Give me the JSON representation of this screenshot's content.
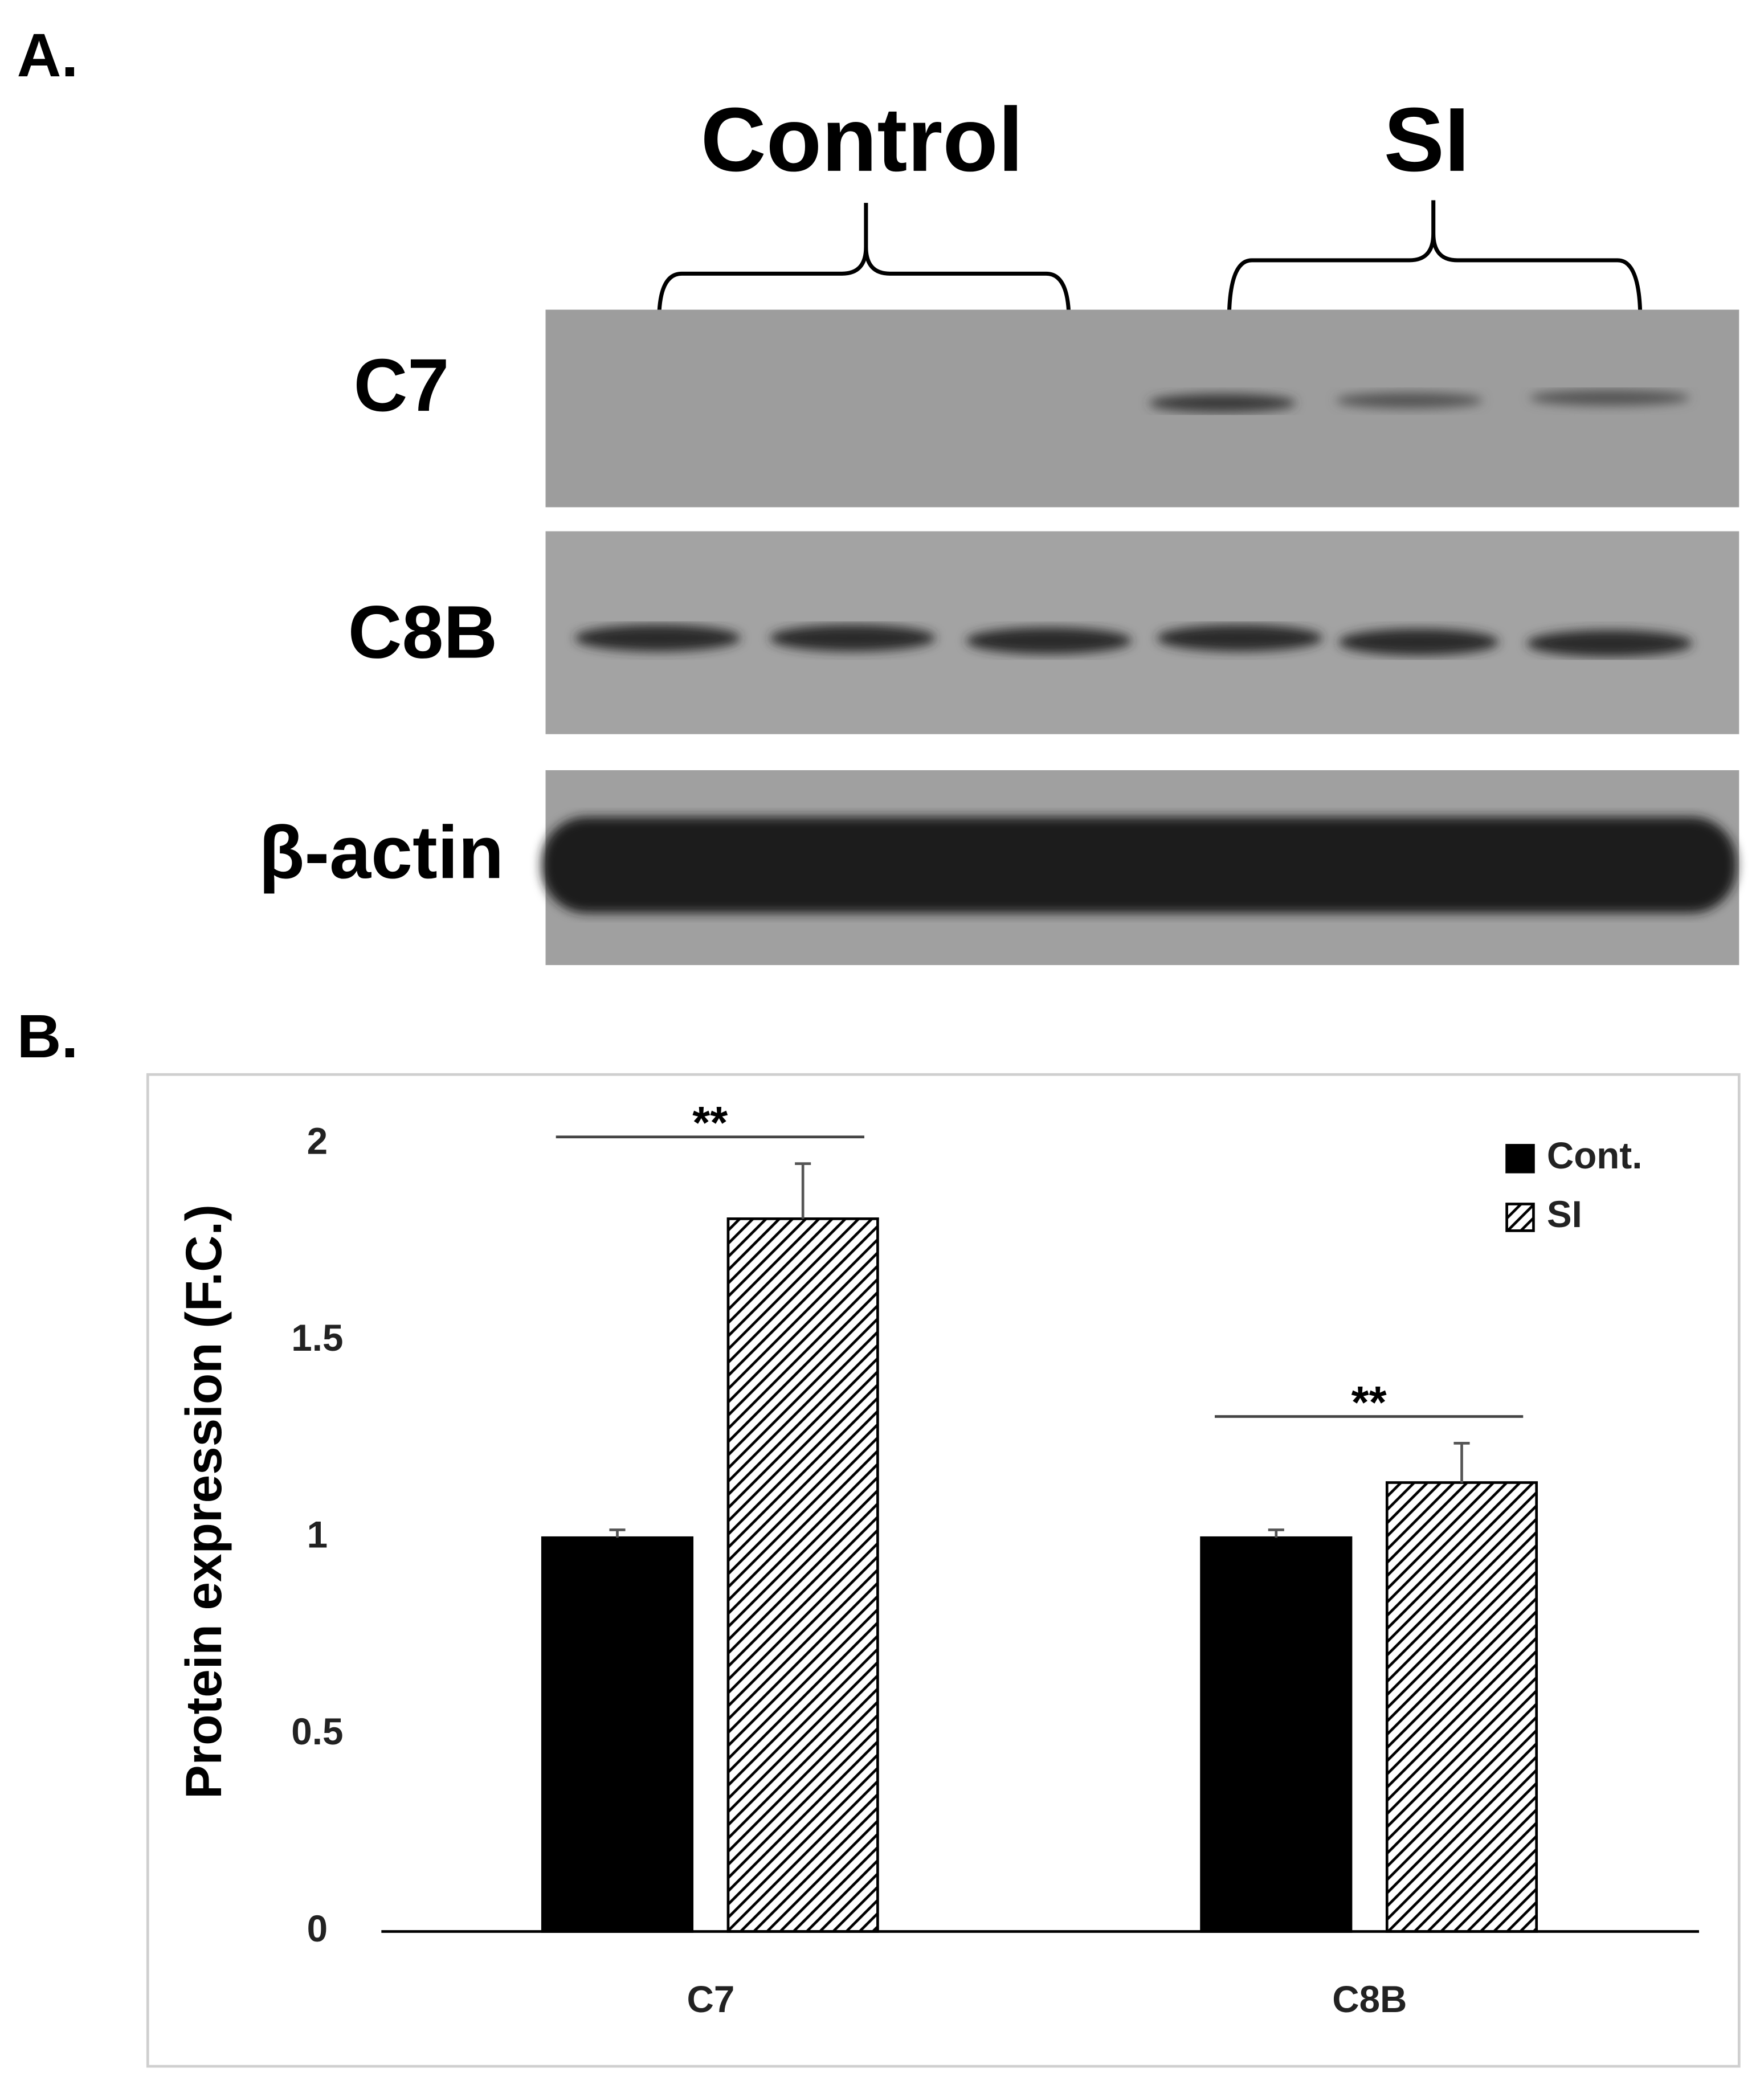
{
  "panel_a": {
    "label": "A.",
    "groups": [
      "Control",
      "SI"
    ],
    "rows": [
      "C7",
      "C8B",
      "β-actin"
    ]
  },
  "panel_b": {
    "label": "B."
  },
  "chart_data": {
    "type": "bar",
    "ylabel": "Protein expression (F.C.)",
    "categories": [
      "C7",
      "C8B"
    ],
    "series": [
      {
        "name": "Cont.",
        "color": "#000000",
        "pattern": "solid",
        "values": [
          1,
          1
        ],
        "errors": [
          0.02,
          0.02
        ]
      },
      {
        "name": "SI",
        "color": "#000000",
        "pattern": "hatch",
        "values": [
          1.81,
          1.14
        ],
        "errors": [
          0.14,
          0.1
        ]
      }
    ],
    "significance": [
      "**",
      "**"
    ],
    "ylim": [
      0,
      2
    ],
    "yticks": [
      0,
      0.5,
      1,
      {
        "value": 1.5,
        "label": "1.5"
      },
      2
    ],
    "grid": false,
    "legend": "top-right"
  }
}
